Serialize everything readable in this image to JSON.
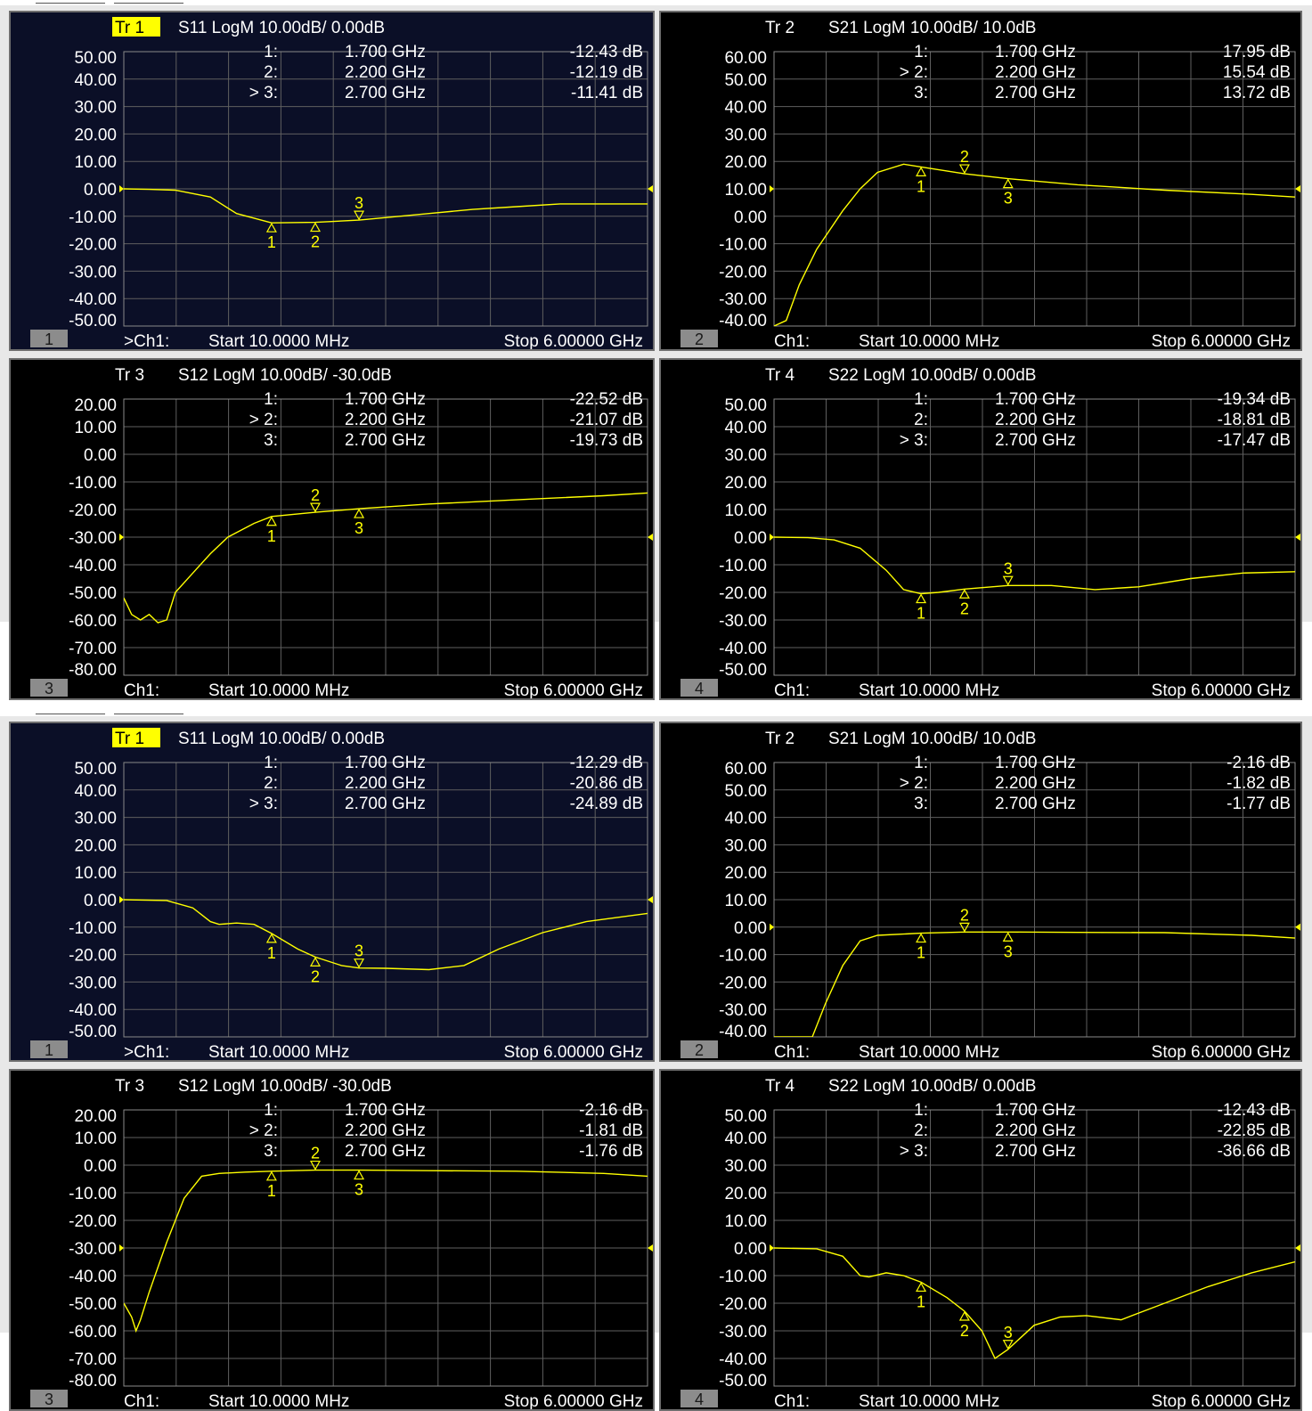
{
  "screens": [
    {
      "panels": [
        {
          "title_tr": "Tr 1",
          "title_rest": "S11 LogM 10.00dB/ 0.00dB",
          "active": true,
          "window_number": "1",
          "footer_ch": ">Ch1:",
          "footer_start": "Start 10.0000 MHz",
          "footer_stop": "Stop 6.00000 GHz",
          "markers": [
            {
              "label": "1:",
              "active": false,
              "freq": "1.700 GHz",
              "value": "-12.43 dB"
            },
            {
              "label": "2:",
              "active": false,
              "freq": "2.200 GHz",
              "value": "-12.19 dB"
            },
            {
              "label": "> 3:",
              "active": true,
              "freq": "2.700 GHz",
              "value": "-11.41 dB"
            }
          ]
        },
        {
          "title_tr": "Tr 2",
          "title_rest": "S21 LogM 10.00dB/ 10.0dB",
          "active": false,
          "window_number": "2",
          "footer_ch": "Ch1:",
          "footer_start": "Start 10.0000 MHz",
          "footer_stop": "Stop 6.00000 GHz",
          "markers": [
            {
              "label": "1:",
              "active": false,
              "freq": "1.700 GHz",
              "value": "17.95 dB"
            },
            {
              "label": "> 2:",
              "active": true,
              "freq": "2.200 GHz",
              "value": "15.54 dB"
            },
            {
              "label": "3:",
              "active": false,
              "freq": "2.700 GHz",
              "value": "13.72 dB"
            }
          ]
        },
        {
          "title_tr": "Tr 3",
          "title_rest": "S12 LogM 10.00dB/ -30.0dB",
          "active": false,
          "window_number": "3",
          "footer_ch": "Ch1:",
          "footer_start": "Start 10.0000 MHz",
          "footer_stop": "Stop 6.00000 GHz",
          "markers": [
            {
              "label": "1:",
              "active": false,
              "freq": "1.700 GHz",
              "value": "-22.52 dB"
            },
            {
              "label": "> 2:",
              "active": true,
              "freq": "2.200 GHz",
              "value": "-21.07 dB"
            },
            {
              "label": "3:",
              "active": false,
              "freq": "2.700 GHz",
              "value": "-19.73 dB"
            }
          ]
        },
        {
          "title_tr": "Tr 4",
          "title_rest": "S22 LogM 10.00dB/ 0.00dB",
          "active": false,
          "window_number": "4",
          "footer_ch": "Ch1:",
          "footer_start": "Start 10.0000 MHz",
          "footer_stop": "Stop 6.00000 GHz",
          "markers": [
            {
              "label": "1:",
              "active": false,
              "freq": "1.700 GHz",
              "value": "-19.34 dB"
            },
            {
              "label": "2:",
              "active": false,
              "freq": "2.200 GHz",
              "value": "-18.81 dB"
            },
            {
              "label": "> 3:",
              "active": true,
              "freq": "2.700 GHz",
              "value": "-17.47 dB"
            }
          ]
        }
      ]
    },
    {
      "panels": [
        {
          "title_tr": "Tr 1",
          "title_rest": "S11 LogM 10.00dB/ 0.00dB",
          "active": true,
          "window_number": "1",
          "footer_ch": ">Ch1:",
          "footer_start": "Start 10.0000 MHz",
          "footer_stop": "Stop 6.00000 GHz",
          "markers": [
            {
              "label": "1:",
              "active": false,
              "freq": "1.700 GHz",
              "value": "-12.29 dB"
            },
            {
              "label": "2:",
              "active": false,
              "freq": "2.200 GHz",
              "value": "-20.86 dB"
            },
            {
              "label": "> 3:",
              "active": true,
              "freq": "2.700 GHz",
              "value": "-24.89 dB"
            }
          ]
        },
        {
          "title_tr": "Tr 2",
          "title_rest": "S21 LogM 10.00dB/ 10.0dB",
          "active": false,
          "window_number": "2",
          "footer_ch": "Ch1:",
          "footer_start": "Start 10.0000 MHz",
          "footer_stop": "Stop 6.00000 GHz",
          "markers": [
            {
              "label": "1:",
              "active": false,
              "freq": "1.700 GHz",
              "value": "-2.16 dB"
            },
            {
              "label": "> 2:",
              "active": true,
              "freq": "2.200 GHz",
              "value": "-1.82 dB"
            },
            {
              "label": "3:",
              "active": false,
              "freq": "2.700 GHz",
              "value": "-1.77 dB"
            }
          ]
        },
        {
          "title_tr": "Tr 3",
          "title_rest": "S12 LogM 10.00dB/ -30.0dB",
          "active": false,
          "window_number": "3",
          "footer_ch": "Ch1:",
          "footer_start": "Start 10.0000 MHz",
          "footer_stop": "Stop 6.00000 GHz",
          "markers": [
            {
              "label": "1:",
              "active": false,
              "freq": "1.700 GHz",
              "value": "-2.16 dB"
            },
            {
              "label": "> 2:",
              "active": true,
              "freq": "2.200 GHz",
              "value": "-1.81 dB"
            },
            {
              "label": "3:",
              "active": false,
              "freq": "2.700 GHz",
              "value": "-1.76 dB"
            }
          ]
        },
        {
          "title_tr": "Tr 4",
          "title_rest": "S22 LogM 10.00dB/ 0.00dB",
          "active": false,
          "window_number": "4",
          "footer_ch": "Ch1:",
          "footer_start": "Start 10.0000 MHz",
          "footer_stop": "Stop 6.00000 GHz",
          "markers": [
            {
              "label": "1:",
              "active": false,
              "freq": "1.700 GHz",
              "value": "-12.43 dB"
            },
            {
              "label": "2:",
              "active": false,
              "freq": "2.200 GHz",
              "value": "-22.85 dB"
            },
            {
              "label": "> 3:",
              "active": true,
              "freq": "2.700 GHz",
              "value": "-36.66 dB"
            }
          ]
        }
      ]
    }
  ],
  "colors": {
    "trace": "#ffff00",
    "text": "#ffffff",
    "grid": "#5f5f5f",
    "marker_text": "#ffff00",
    "active_bg": "#0b0f27",
    "inactive_bg": "#000000",
    "window_badge": "#8c8c8c"
  },
  "chart_data": [
    {
      "type": "line",
      "screen": 1,
      "panel": 1,
      "parameter": "S11",
      "x": [
        0.01,
        0.3,
        0.6,
        1.0,
        1.3,
        1.7,
        2.2,
        2.7,
        3.0,
        3.5,
        4.0,
        4.5,
        5.0,
        6.0
      ],
      "y": [
        0,
        -0.2,
        -0.5,
        -3,
        -9,
        -12.4,
        -12.2,
        -11.4,
        -10.5,
        -9,
        -7.5,
        -6.5,
        -5.5,
        -5.5
      ],
      "xlim": [
        0.01,
        6.0
      ],
      "ylim": [
        -50,
        50
      ],
      "y_ticks": [
        "50.00",
        "40.00",
        "30.00",
        "20.00",
        "10.00",
        "0.00",
        "-10.00",
        "-20.00",
        "-30.00",
        "-40.00",
        "-50.00"
      ],
      "markers_x": [
        1.7,
        2.2,
        2.7
      ]
    },
    {
      "type": "line",
      "screen": 1,
      "panel": 2,
      "parameter": "S21",
      "x": [
        0.01,
        0.15,
        0.3,
        0.5,
        0.8,
        1.0,
        1.2,
        1.5,
        1.7,
        2.2,
        2.7,
        3.5,
        4.5,
        5.5,
        6.0
      ],
      "y": [
        -40,
        -38,
        -25,
        -12,
        2,
        10,
        16,
        19,
        18,
        15.5,
        13.7,
        11.5,
        9.5,
        8,
        7
      ],
      "xlim": [
        0.01,
        6.0
      ],
      "ylim": [
        -40,
        60
      ],
      "y_ticks": [
        "60.00",
        "50.00",
        "40.00",
        "30.00",
        "20.00",
        "10.00",
        "0.00",
        "-10.00",
        "-20.00",
        "-30.00",
        "-40.00"
      ],
      "markers_x": [
        1.7,
        2.2,
        2.7
      ]
    },
    {
      "type": "line",
      "screen": 1,
      "panel": 3,
      "parameter": "S12",
      "x": [
        0.01,
        0.1,
        0.2,
        0.3,
        0.4,
        0.5,
        0.55,
        0.6,
        0.8,
        1.0,
        1.2,
        1.5,
        1.7,
        2.2,
        2.7,
        3.5,
        4.5,
        5.5,
        6.0
      ],
      "y": [
        -52,
        -58,
        -60,
        -58,
        -61,
        -60,
        -55,
        -50,
        -43,
        -36,
        -30,
        -25,
        -22.5,
        -21,
        -19.7,
        -18,
        -16.5,
        -15,
        -14
      ],
      "xlim": [
        0.01,
        6.0
      ],
      "ylim": [
        -80,
        20
      ],
      "y_ticks": [
        "20.00",
        "10.00",
        "0.00",
        "-10.00",
        "-20.00",
        "-30.00",
        "-40.00",
        "-50.00",
        "-60.00",
        "-70.00",
        "-80.00"
      ],
      "markers_x": [
        1.7,
        2.2,
        2.7
      ]
    },
    {
      "type": "line",
      "screen": 1,
      "panel": 4,
      "parameter": "S22",
      "x": [
        0.01,
        0.4,
        0.7,
        1.0,
        1.3,
        1.5,
        1.7,
        1.9,
        2.2,
        2.7,
        3.2,
        3.7,
        4.2,
        4.8,
        5.4,
        6.0
      ],
      "y": [
        0,
        -0.2,
        -1,
        -4,
        -12,
        -19,
        -20.5,
        -20,
        -18.8,
        -17.5,
        -17.5,
        -19,
        -18,
        -15,
        -13,
        -12.5
      ],
      "xlim": [
        0.01,
        6.0
      ],
      "ylim": [
        -50,
        50
      ],
      "y_ticks": [
        "50.00",
        "40.00",
        "30.00",
        "20.00",
        "10.00",
        "0.00",
        "-10.00",
        "-20.00",
        "-30.00",
        "-40.00",
        "-50.00"
      ],
      "markers_x": [
        1.7,
        2.2,
        2.7
      ]
    },
    {
      "type": "line",
      "screen": 2,
      "panel": 1,
      "parameter": "S11",
      "x": [
        0.01,
        0.5,
        0.8,
        1.0,
        1.1,
        1.3,
        1.5,
        1.7,
        2.0,
        2.2,
        2.5,
        2.7,
        3.0,
        3.5,
        3.9,
        4.3,
        4.8,
        5.3,
        6.0
      ],
      "y": [
        0,
        -0.3,
        -3,
        -8,
        -9,
        -8.5,
        -9,
        -12.3,
        -18,
        -20.9,
        -24,
        -24.9,
        -25,
        -25.5,
        -24,
        -18,
        -12,
        -8,
        -5
      ],
      "xlim": [
        0.01,
        6.0
      ],
      "ylim": [
        -50,
        50
      ],
      "y_ticks": [
        "50.00",
        "40.00",
        "30.00",
        "20.00",
        "10.00",
        "0.00",
        "-10.00",
        "-20.00",
        "-30.00",
        "-40.00",
        "-50.00"
      ],
      "markers_x": [
        1.7,
        2.2,
        2.7
      ]
    },
    {
      "type": "line",
      "screen": 2,
      "panel": 2,
      "parameter": "S21",
      "x": [
        0.01,
        0.3,
        0.45,
        0.6,
        0.8,
        1.0,
        1.2,
        1.7,
        2.2,
        2.7,
        3.5,
        4.5,
        5.5,
        6.0
      ],
      "y": [
        -40,
        -40,
        -40,
        -28,
        -14,
        -5,
        -3,
        -2.2,
        -1.8,
        -1.8,
        -1.9,
        -2,
        -3,
        -4
      ],
      "xlim": [
        0.01,
        6.0
      ],
      "ylim": [
        -40,
        60
      ],
      "y_ticks": [
        "60.00",
        "50.00",
        "40.00",
        "30.00",
        "20.00",
        "10.00",
        "0.00",
        "-10.00",
        "-20.00",
        "-30.00",
        "-40.00"
      ],
      "markers_x": [
        1.7,
        2.2,
        2.7
      ]
    },
    {
      "type": "line",
      "screen": 2,
      "panel": 3,
      "parameter": "S12",
      "x": [
        0.01,
        0.1,
        0.15,
        0.2,
        0.3,
        0.5,
        0.7,
        0.9,
        1.1,
        1.4,
        1.7,
        2.2,
        2.7,
        3.5,
        4.5,
        5.5,
        6.0
      ],
      "y": [
        -50,
        -55,
        -60,
        -56,
        -46,
        -28,
        -12,
        -4,
        -3,
        -2.5,
        -2.2,
        -1.8,
        -1.8,
        -2,
        -2.2,
        -3,
        -4
      ],
      "xlim": [
        0.01,
        6.0
      ],
      "ylim": [
        -80,
        20
      ],
      "y_ticks": [
        "20.00",
        "10.00",
        "0.00",
        "-10.00",
        "-20.00",
        "-30.00",
        "-40.00",
        "-50.00",
        "-60.00",
        "-70.00",
        "-80.00"
      ],
      "markers_x": [
        1.7,
        2.2,
        2.7
      ]
    },
    {
      "type": "line",
      "screen": 2,
      "panel": 4,
      "parameter": "S22",
      "x": [
        0.01,
        0.5,
        0.8,
        1.0,
        1.1,
        1.3,
        1.5,
        1.7,
        2.0,
        2.2,
        2.4,
        2.55,
        2.7,
        3.0,
        3.3,
        3.6,
        4.0,
        4.5,
        5.0,
        5.5,
        6.0
      ],
      "y": [
        0,
        -0.3,
        -3,
        -10,
        -10.5,
        -9,
        -10,
        -12.4,
        -18,
        -22.9,
        -30,
        -40,
        -36.7,
        -28,
        -25,
        -24.5,
        -26,
        -20,
        -14,
        -9,
        -5
      ],
      "xlim": [
        0.01,
        6.0
      ],
      "ylim": [
        -50,
        50
      ],
      "y_ticks": [
        "50.00",
        "40.00",
        "30.00",
        "20.00",
        "10.00",
        "0.00",
        "-10.00",
        "-20.00",
        "-30.00",
        "-40.00",
        "-50.00"
      ],
      "markers_x": [
        1.7,
        2.2,
        2.7
      ]
    }
  ]
}
